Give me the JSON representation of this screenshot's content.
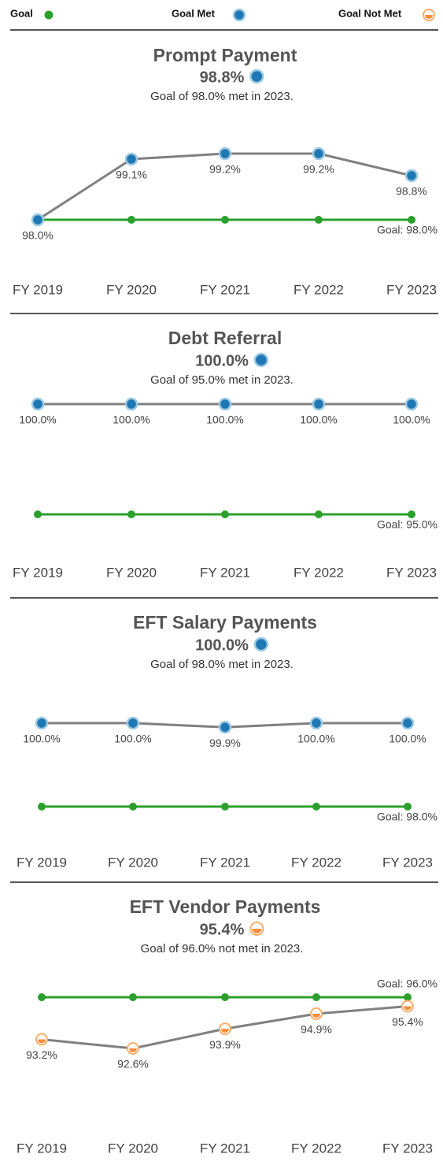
{
  "legend": {
    "goal": "Goal",
    "met": "Goal Met",
    "not_met": "Goal Not Met"
  },
  "colors": {
    "line": "#808080",
    "goal": "#2ca02c",
    "met": "#1f77b4",
    "met_ring": "#9ecae1",
    "not_met": "#fd8d3c",
    "not_met_ring": "#fdae6b"
  },
  "chart_data": [
    {
      "type": "line",
      "title": "Prompt Payment",
      "headline": "98.8%",
      "goal_met": true,
      "subtitle": "Goal of 98.0% met in 2023.",
      "categories": [
        "FY 2019",
        "FY 2020",
        "FY 2021",
        "FY 2022",
        "FY 2023"
      ],
      "values": [
        98.0,
        99.1,
        99.2,
        99.2,
        98.8
      ],
      "value_labels": [
        "98.0%",
        "99.1%",
        "99.2%",
        "99.2%",
        "98.8%"
      ],
      "goal": {
        "values": [
          98.0,
          98.0,
          98.0,
          98.0,
          98.0
        ],
        "label": "Goal: 98.0%"
      }
    },
    {
      "type": "line",
      "title": "Debt Referral",
      "headline": "100.0%",
      "goal_met": true,
      "subtitle": "Goal of 95.0% met in 2023.",
      "categories": [
        "FY 2019",
        "FY 2020",
        "FY 2021",
        "FY 2022",
        "FY 2023"
      ],
      "values": [
        100.0,
        100.0,
        100.0,
        100.0,
        100.0
      ],
      "value_labels": [
        "100.0%",
        "100.0%",
        "100.0%",
        "100.0%",
        "100.0%"
      ],
      "goal": {
        "values": [
          95.0,
          95.0,
          95.0,
          95.0,
          95.0
        ],
        "label": "Goal: 95.0%"
      }
    },
    {
      "type": "line",
      "title": "EFT Salary Payments",
      "headline": "100.0%",
      "goal_met": true,
      "subtitle": "Goal of 98.0% met in 2023.",
      "categories": [
        "FY 2019",
        "FY 2020",
        "FY 2021",
        "FY 2022",
        "FY 2023"
      ],
      "values": [
        100.0,
        100.0,
        99.9,
        100.0,
        100.0
      ],
      "value_labels": [
        "100.0%",
        "100.0%",
        "99.9%",
        "100.0%",
        "100.0%"
      ],
      "goal": {
        "values": [
          98.0,
          98.0,
          98.0,
          98.0,
          98.0
        ],
        "label": "Goal: 98.0%"
      }
    },
    {
      "type": "line",
      "title": "EFT Vendor Payments",
      "headline": "95.4%",
      "goal_met": false,
      "subtitle": "Goal of 96.0% not met in 2023.",
      "categories": [
        "FY 2019",
        "FY 2020",
        "FY 2021",
        "FY 2022",
        "FY 2023"
      ],
      "values": [
        93.2,
        92.6,
        93.9,
        94.9,
        95.4
      ],
      "value_labels": [
        "93.2%",
        "92.6%",
        "93.9%",
        "94.9%",
        "95.4%"
      ],
      "goal": {
        "values": [
          96.0,
          96.0,
          96.0,
          96.0,
          96.0
        ],
        "label": "Goal: 96.0%"
      }
    }
  ]
}
